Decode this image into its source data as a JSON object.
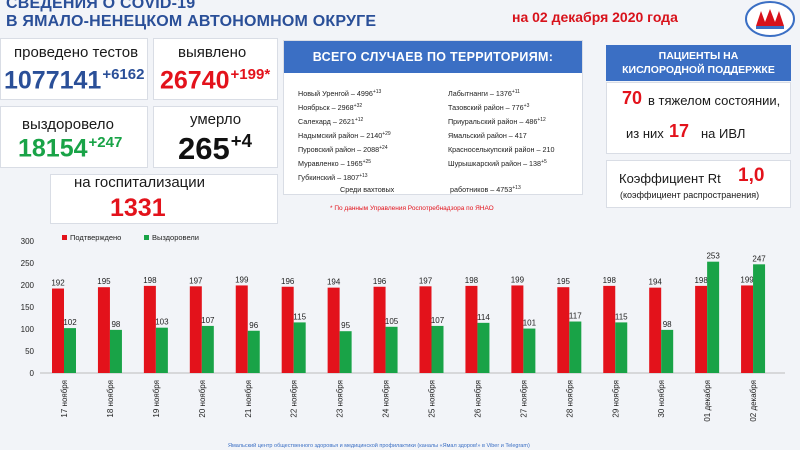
{
  "header": {
    "title_line1": "СВЕДЕНИЯ О COVID-19",
    "title_line2": "В ЯМАЛО-НЕНЕЦКОМ АВТОНОМНОМ ОКРУГЕ",
    "date": "на 02 декабря 2020 года",
    "logo_icon": "ministry-emblem-icon"
  },
  "stats": {
    "tests_label": "проведено тестов",
    "tests_value": "1077141",
    "tests_delta": "+6162",
    "detected_label": "выявлено",
    "detected_value": "26740",
    "detected_delta": "+199*",
    "recovered_label": "выздоровело",
    "recovered_value": "18154",
    "recovered_delta": "+247",
    "died_label": "умерло",
    "died_value": "265",
    "died_delta": "+4",
    "hosp_label": "на госпитализации",
    "hosp_value": "1331"
  },
  "territories": {
    "header": "ВСЕГО СЛУЧАЕВ ПО ТЕРРИТОРИЯМ:",
    "left": [
      {
        "text": "Новый Уренгой – 4996",
        "delta": "+13"
      },
      {
        "text": "Ноябрьск – 2968",
        "delta": "+32"
      },
      {
        "text": "Салехард – 2621",
        "delta": "+12"
      },
      {
        "text": "Надымский район – 2140",
        "delta": "+29"
      },
      {
        "text": "Пуровский район – 2088",
        "delta": "+24"
      },
      {
        "text": "Муравленко – 1965",
        "delta": "+25"
      },
      {
        "text": "Губкинский – 1807",
        "delta": "+13"
      }
    ],
    "right": [
      {
        "text": "Лабытнанги – 1376",
        "delta": "+11"
      },
      {
        "text": "Тазовский район – 776",
        "delta": "+3"
      },
      {
        "text": "Приуральский район – 486",
        "delta": "+12"
      },
      {
        "text": "Ямальский район – 417",
        "delta": ""
      },
      {
        "text": "Красноселькупский район – 210",
        "delta": ""
      },
      {
        "text": "Шурышкарский район – 138",
        "delta": "+5"
      }
    ],
    "shift_label": "Среди вахтовых",
    "shift_label2": "работников – 4753",
    "shift_delta": "+13"
  },
  "oxygen": {
    "header_line1": "ПАЦИЕНТЫ НА",
    "header_line2": "КИСЛОРОДНОЙ ПОДДЕРЖКЕ",
    "severe_value": "70",
    "severe_label": "в тяжелом состоянии,",
    "ivl_prefix": "из них",
    "ivl_value": "17",
    "ivl_label": "на ИВЛ",
    "rt_label": "Коэффициент Rt",
    "rt_value": "1,0",
    "rt_sub": "(коэффициент распространения)"
  },
  "note": "* По данным Управления Роспотребнадзора по ЯНАО",
  "footer": "Ямальский центр общественного здоровья и медицинской профилактики (каналы «Ямал здоров!» в Viber и Telegram)",
  "chart_data": {
    "type": "bar",
    "categories": [
      "17 ноября",
      "18 ноября",
      "19 ноября",
      "20 ноября",
      "21 ноября",
      "22 ноября",
      "23 ноября",
      "24 ноября",
      "25 ноября",
      "26 ноября",
      "27 ноября",
      "28 ноября",
      "29 ноября",
      "30 ноября",
      "01 декабря",
      "02 декабря"
    ],
    "series": [
      {
        "name": "Подтверждено",
        "color": "#e3121b",
        "values": [
          192,
          195,
          198,
          197,
          199,
          196,
          194,
          196,
          197,
          198,
          199,
          195,
          198,
          194,
          198,
          199
        ]
      },
      {
        "name": "Выздоровели",
        "color": "#19a347",
        "values": [
          102,
          98,
          103,
          107,
          96,
          115,
          95,
          105,
          107,
          114,
          101,
          117,
          115,
          98,
          253,
          247
        ]
      }
    ],
    "ylim": [
      0,
      300
    ],
    "yticks": [
      0,
      50,
      100,
      150,
      200,
      250,
      300
    ],
    "legend": "top-left",
    "grid": false
  }
}
